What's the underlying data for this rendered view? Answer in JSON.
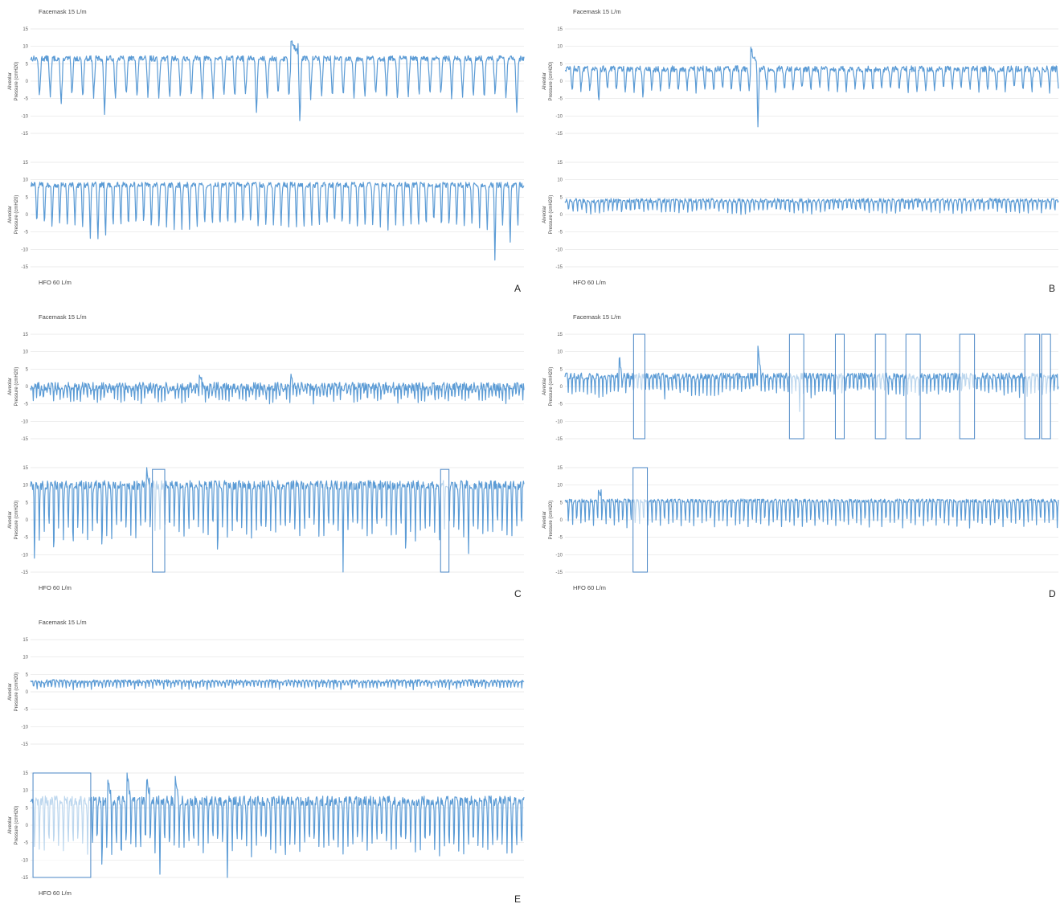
{
  "figure": {
    "colors": {
      "trace": "#5b9bd5",
      "grid": "#e4e4e4",
      "box": "#4a86c5"
    }
  },
  "chart_data": [
    {
      "panel": "A",
      "type": "line",
      "top_label": "Facemask 15 L/m",
      "bottom_label": "HFO 60 L/m",
      "charts": [
        {
          "ylabel": [
            "Alveolar",
            "Pressure (cmH20)"
          ],
          "ylim": [
            -15,
            15
          ],
          "yticks": [
            15,
            10,
            5,
            0,
            -5,
            -10,
            -15
          ],
          "grid": true,
          "series": [
            {
              "period": 13.5,
              "high": 6.5,
              "low": -5,
              "noise": 0.8,
              "deep": [
                [
                  2,
                  -8
                ],
                [
                  6,
                  -10
                ],
                [
                  20,
                  -9
                ],
                [
                  24,
                  -12.5
                ],
                [
                  44,
                  -9
                ]
              ],
              "spikes": [
                [
                  24,
                  12
                ]
              ],
              "boxes": []
            }
          ]
        },
        {
          "ylabel": [
            "Alveolar",
            "Pressure (cmH20)"
          ],
          "ylim": [
            -15,
            15
          ],
          "yticks": [
            15,
            10,
            5,
            0,
            -5,
            -10,
            -15
          ],
          "grid": true,
          "series": [
            {
              "period": 9.5,
              "high": 8.5,
              "low": -4,
              "noise": 0.8,
              "deep": [
                [
                  7,
                  -8
                ],
                [
                  8,
                  -9
                ],
                [
                  9,
                  -8
                ],
                [
                  60,
                  -14.5
                ],
                [
                  62,
                  -9
                ]
              ],
              "spikes": [],
              "boxes": []
            }
          ]
        }
      ]
    },
    {
      "panel": "B",
      "type": "line",
      "top_label": "Facemask 15 L/m",
      "bottom_label": "HFO 60 L/m",
      "charts": [
        {
          "ylabel": [
            "Alveolar",
            "Pressure (cmH20)"
          ],
          "ylim": [
            -15,
            15
          ],
          "yticks": [
            15,
            10,
            5,
            0,
            -5,
            -10,
            -15
          ],
          "grid": true,
          "series": [
            {
              "period": 11,
              "high": 3.5,
              "low": -3,
              "noise": 0.9,
              "deep": [
                [
                  3,
                  -6
                ],
                [
                  8,
                  -5
                ],
                [
                  21,
                  -14.5
                ]
              ],
              "spikes": [
                [
                  21,
                  9.5
                ]
              ],
              "boxes": []
            }
          ]
        },
        {
          "ylabel": [
            "Alveolar",
            "Pressure (cmH20)"
          ],
          "ylim": [
            -15,
            15
          ],
          "yticks": [
            15,
            10,
            5,
            0,
            -5,
            -10,
            -15
          ],
          "grid": true,
          "series": [
            {
              "period": 5.5,
              "high": 4,
              "low": 0.5,
              "noise": 0.6,
              "deep": [],
              "spikes": [],
              "boxes": []
            }
          ]
        }
      ]
    },
    {
      "panel": "C",
      "type": "line",
      "top_label": "Facemask 15 L/m",
      "bottom_label": "HFO 60 L/m",
      "charts": [
        {
          "ylabel": [
            "Alveolar",
            "Pressure (cmH20)"
          ],
          "ylim": [
            -15,
            15
          ],
          "yticks": [
            15,
            10,
            5,
            0,
            -5,
            -10,
            -15
          ],
          "grid": true,
          "series": [
            {
              "period": 4.2,
              "high": 0,
              "low": -4,
              "noise": 1.2,
              "deep": [],
              "spikes": [
                [
                  50,
                  3
                ],
                [
                  77,
                  4.5
                ]
              ],
              "boxes": []
            }
          ]
        },
        {
          "ylabel": [
            "Alveolar",
            "Pressure (cmH20)"
          ],
          "ylim": [
            -15,
            15
          ],
          "yticks": [
            15,
            10,
            5,
            0,
            -5,
            -10,
            -15
          ],
          "grid": true,
          "series": [
            {
              "period": 6,
              "high": 10,
              "low": -5,
              "noise": 1.3,
              "deep": [
                [
                  0,
                  -15
                ],
                [
                  4,
                  -15
                ],
                [
                  8,
                  -13
                ],
                [
                  14,
                  -12
                ],
                [
                  38,
                  -15
                ],
                [
                  64,
                  -15
                ],
                [
                  77,
                  -14
                ],
                [
                  90,
                  -12
                ]
              ],
              "spikes": [
                [
                  24,
                  15
                ]
              ],
              "boxes": [
                [
                  0.247,
                  0.272,
                  14.5
                ],
                [
                  0.831,
                  0.848,
                  14.5
                ]
              ]
            }
          ]
        }
      ]
    },
    {
      "panel": "D",
      "type": "line",
      "top_label": "Facemask 15 L/m",
      "bottom_label": "HFO 60 L/m",
      "charts": [
        {
          "ylabel": [
            "Alveolar",
            "Pressure (cmH20)"
          ],
          "ylim": [
            -15,
            15
          ],
          "yticks": [
            15,
            10,
            5,
            0,
            -5,
            -10,
            -15
          ],
          "grid": true,
          "series": [
            {
              "period": 4.8,
              "high": 3,
              "low": -2.5,
              "noise": 0.9,
              "deep": [
                [
                  25,
                  -5
                ],
                [
                  60,
                  -8
                ]
              ],
              "spikes": [
                [
                  14,
                  9
                ],
                [
                  50,
                  11
                ]
              ],
              "boxes": [
                [
                  0.139,
                  0.162,
                  15
                ],
                [
                  0.455,
                  0.484,
                  15
                ],
                [
                  0.548,
                  0.566,
                  15
                ],
                [
                  0.629,
                  0.65,
                  15
                ],
                [
                  0.691,
                  0.72,
                  15
                ],
                [
                  0.8,
                  0.83,
                  15
                ],
                [
                  0.932,
                  0.962,
                  15
                ],
                [
                  0.966,
                  0.984,
                  15
                ]
              ]
            }
          ]
        },
        {
          "ylabel": [
            "Alveolar",
            "Pressure (cmH20)"
          ],
          "ylim": [
            -15,
            15
          ],
          "yticks": [
            15,
            10,
            5,
            0,
            -5,
            -10,
            -15
          ],
          "grid": true,
          "series": [
            {
              "period": 5.2,
              "high": 5.5,
              "low": -2,
              "noise": 0.5,
              "deep": [],
              "spikes": [
                [
                  8,
                  9
                ]
              ],
              "boxes": [
                [
                  0.138,
                  0.167,
                  15
                ]
              ]
            }
          ]
        }
      ]
    },
    {
      "panel": "E",
      "type": "line",
      "top_label": "Facemask 15 L/m",
      "bottom_label": "HFO 60 L/m",
      "charts": [
        {
          "ylabel": [
            "Alveolar",
            "Pressure (cmH20)"
          ],
          "ylim": [
            -15,
            15
          ],
          "yticks": [
            15,
            10,
            5,
            0,
            -5,
            -10,
            -15
          ],
          "grid": true,
          "series": [
            {
              "period": 4.5,
              "high": 3,
              "low": 1,
              "noise": 0.5,
              "deep": [],
              "spikes": [],
              "boxes": []
            }
          ]
        },
        {
          "ylabel": [
            "Alveolar",
            "Pressure (cmH20)"
          ],
          "ylim": [
            -15,
            15
          ],
          "yticks": [
            15,
            10,
            5,
            0,
            -5,
            -10,
            -15
          ],
          "grid": true,
          "series": [
            {
              "period": 6,
              "high": 7,
              "low": -8,
              "noise": 1.4,
              "deep": [
                [
                  14,
                  -15
                ],
                [
                  18,
                  -14
                ],
                [
                  26,
                  -15
                ],
                [
                  40,
                  -15
                ],
                [
                  52,
                  -13
                ]
              ],
              "spikes": [
                [
                  16,
                  14
                ],
                [
                  20,
                  14
                ],
                [
                  24,
                  14.5
                ],
                [
                  30,
                  13
                ]
              ],
              "boxes": [
                [
                  0.005,
                  0.122,
                  15
                ]
              ]
            }
          ]
        }
      ]
    }
  ]
}
